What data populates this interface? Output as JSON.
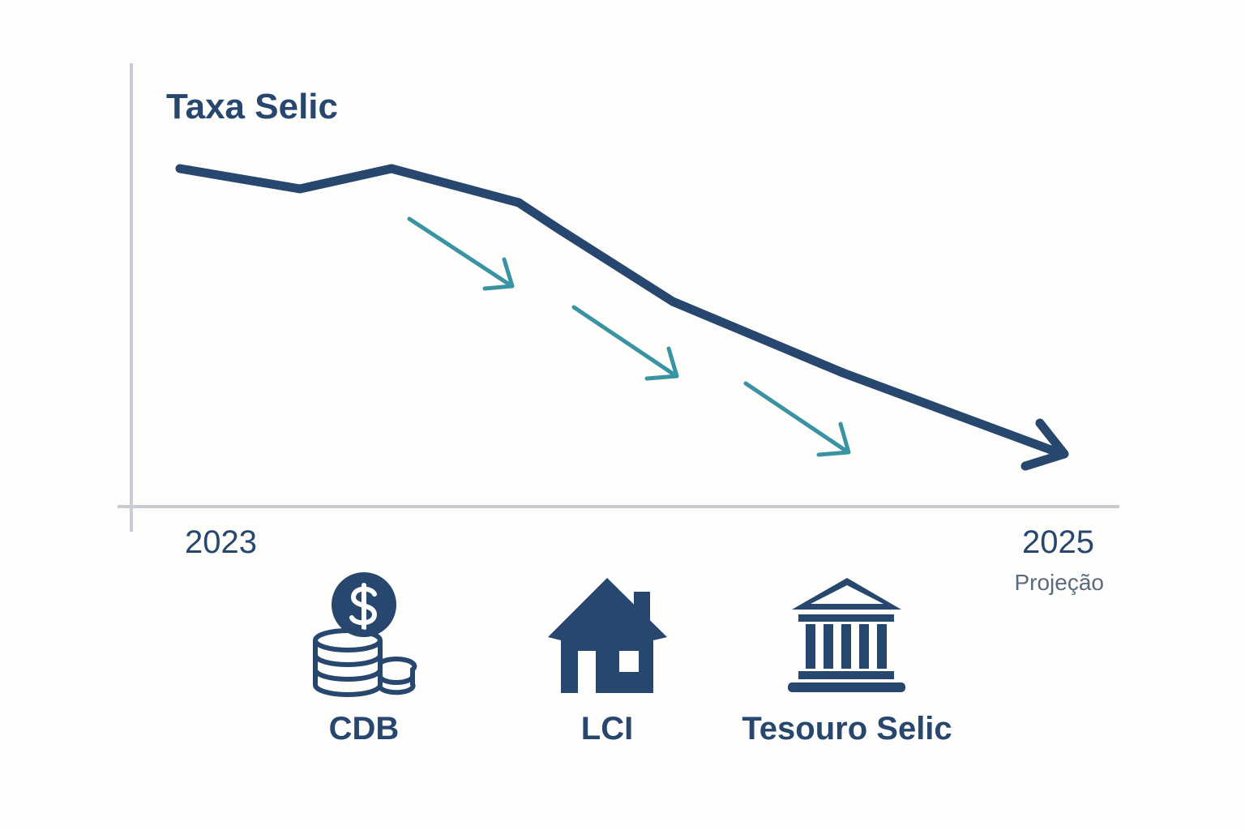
{
  "header": {
    "title": "Taxa Selic"
  },
  "timeline": {
    "start": "2023",
    "end": "2025",
    "end_note": "Projeção"
  },
  "products": [
    {
      "label": "CDB"
    },
    {
      "label": "LCI"
    },
    {
      "label": "Tesouro Selic"
    }
  ]
}
